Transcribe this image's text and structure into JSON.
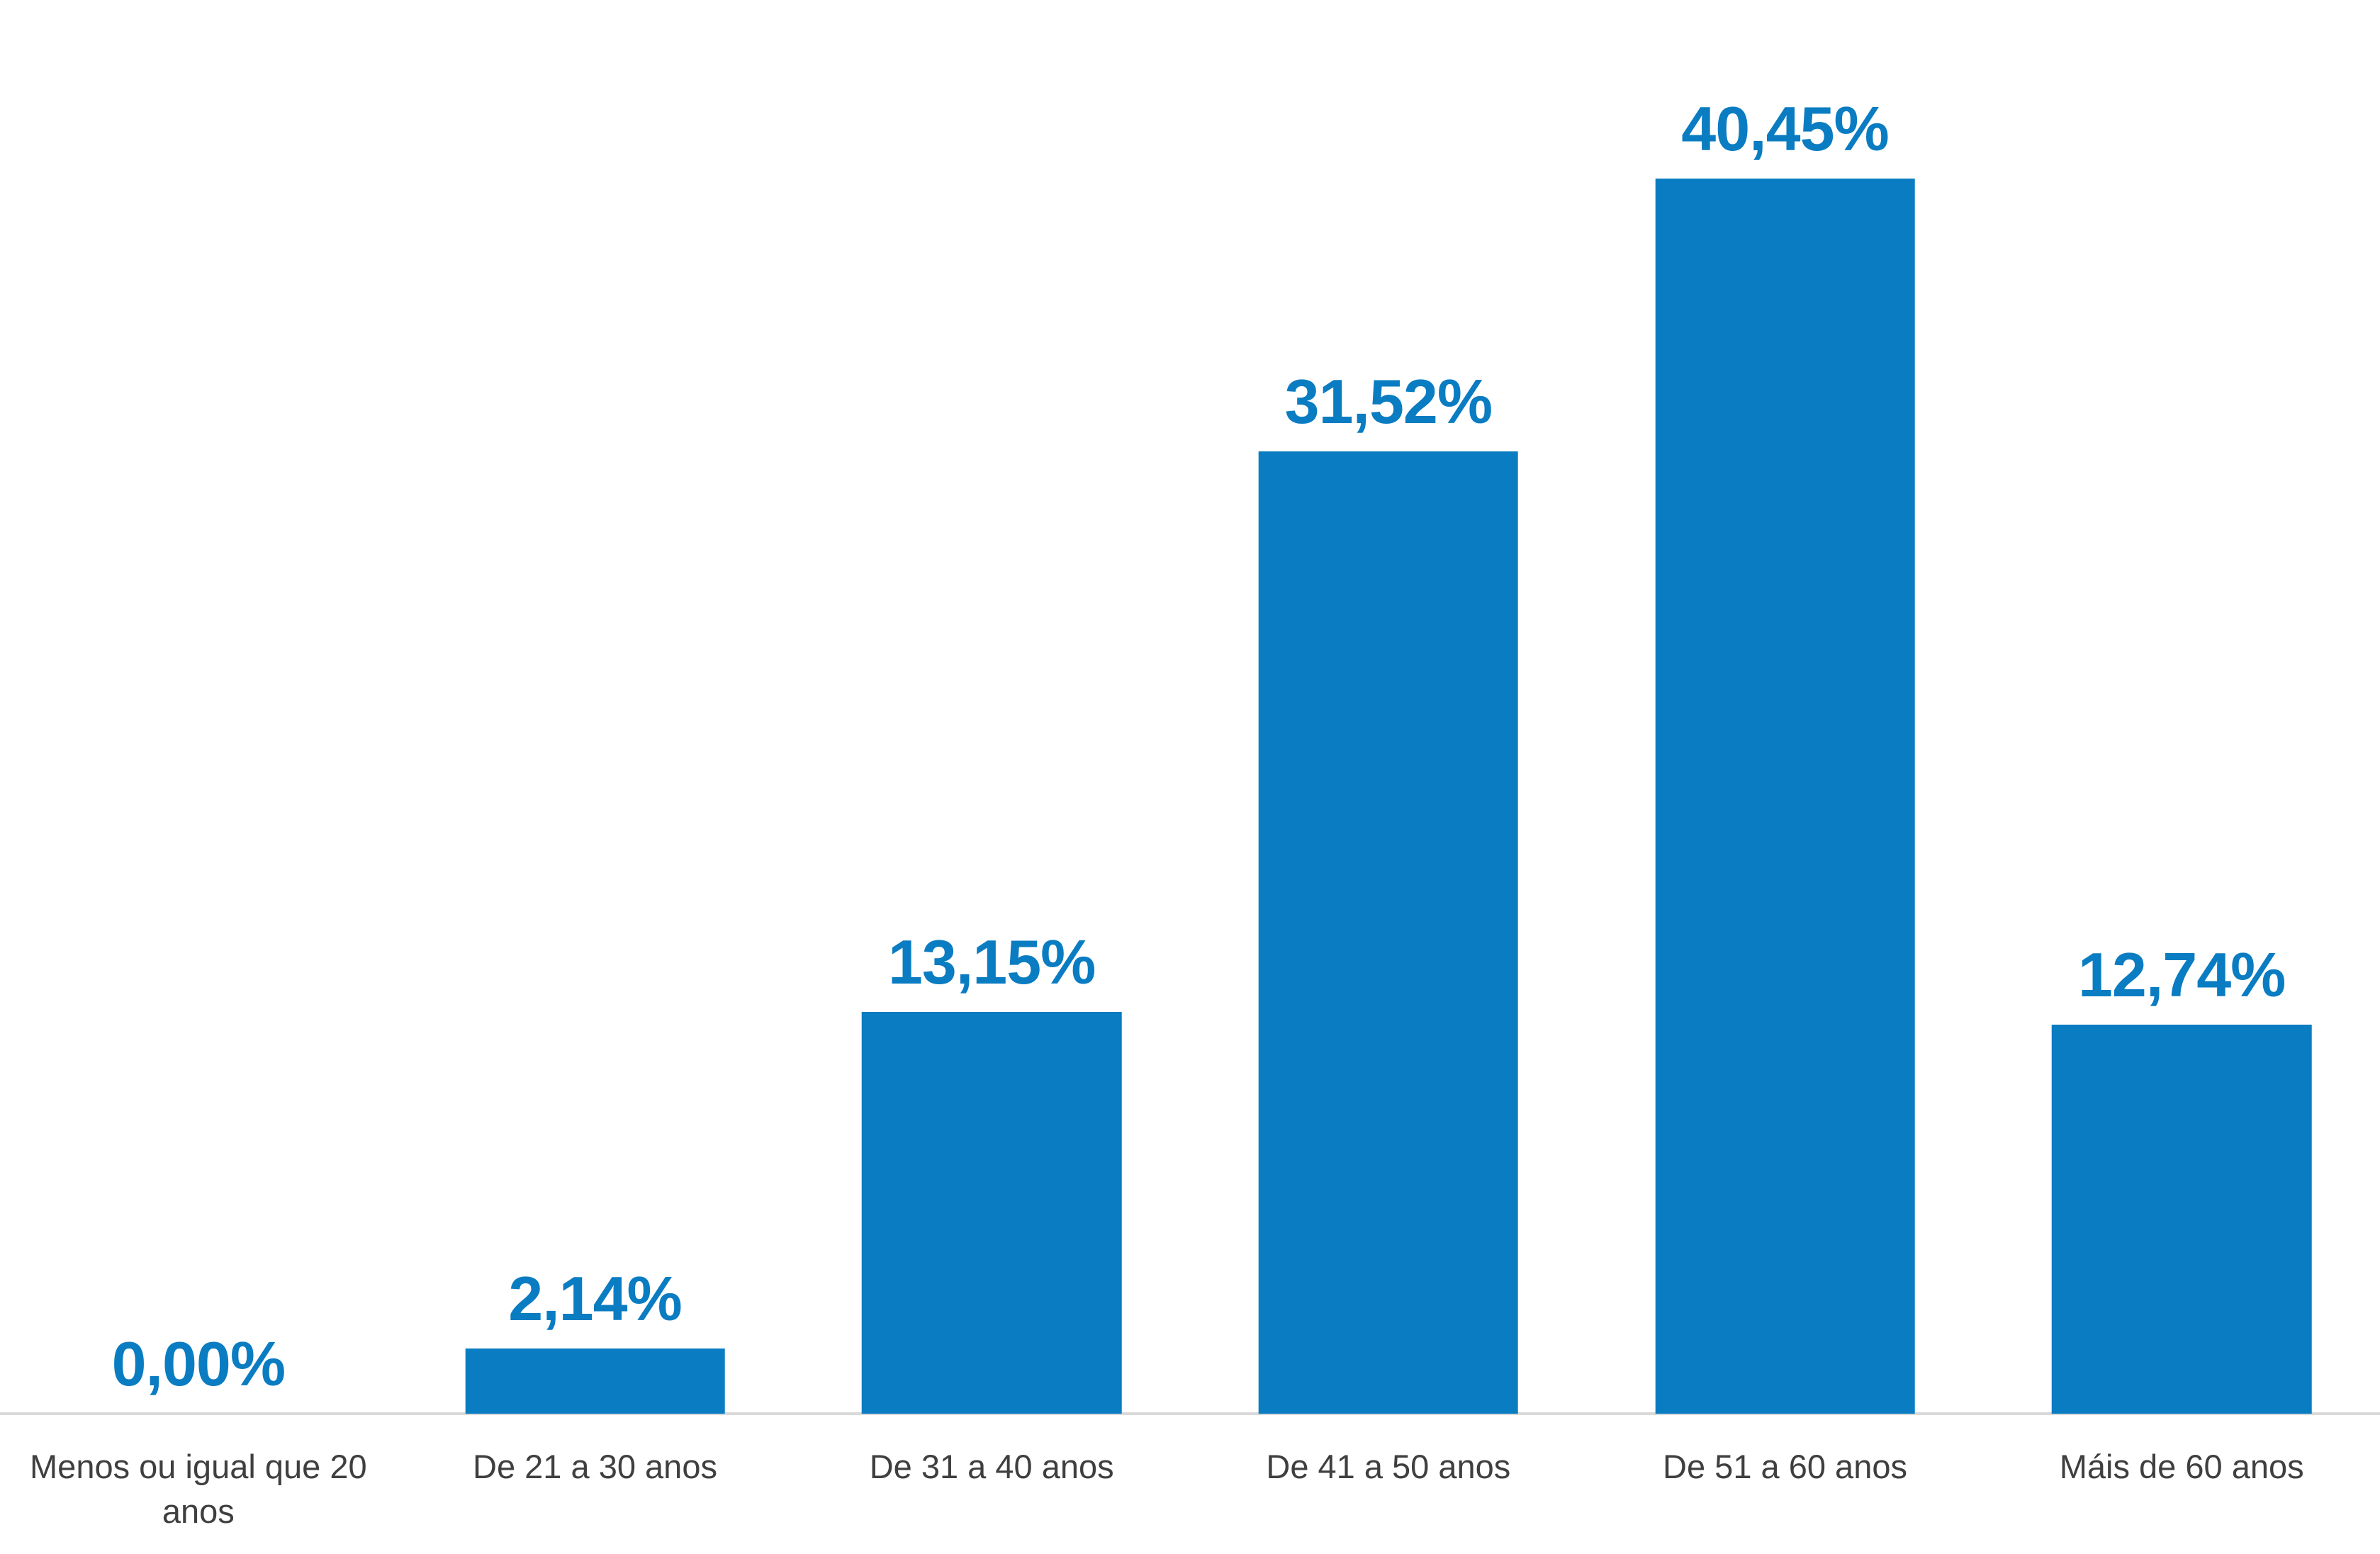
{
  "chart_data": {
    "type": "bar",
    "categories": [
      "Menos ou igual que 20 anos",
      "De 21 a 30 anos",
      "De 31 a 40 anos",
      "De 41 a 50 anos",
      "De 51 a 60 anos",
      "Máis de 60 anos"
    ],
    "values": [
      0.0,
      2.14,
      13.15,
      31.52,
      40.45,
      12.74
    ],
    "value_labels": [
      "0,00%",
      "2,14%",
      "13,15%",
      "31,52%",
      "40,45%",
      "12,74%"
    ],
    "unit": "%",
    "decimal_separator": ",",
    "ylim": [
      0,
      45
    ],
    "grid": false,
    "legend_position": "none",
    "colors": {
      "bar": "#0a7cc2",
      "value_label": "#0a7cc2",
      "category_label": "#3f3f3f",
      "axis_line": "#d9d9d9",
      "background": "#ffffff"
    }
  }
}
